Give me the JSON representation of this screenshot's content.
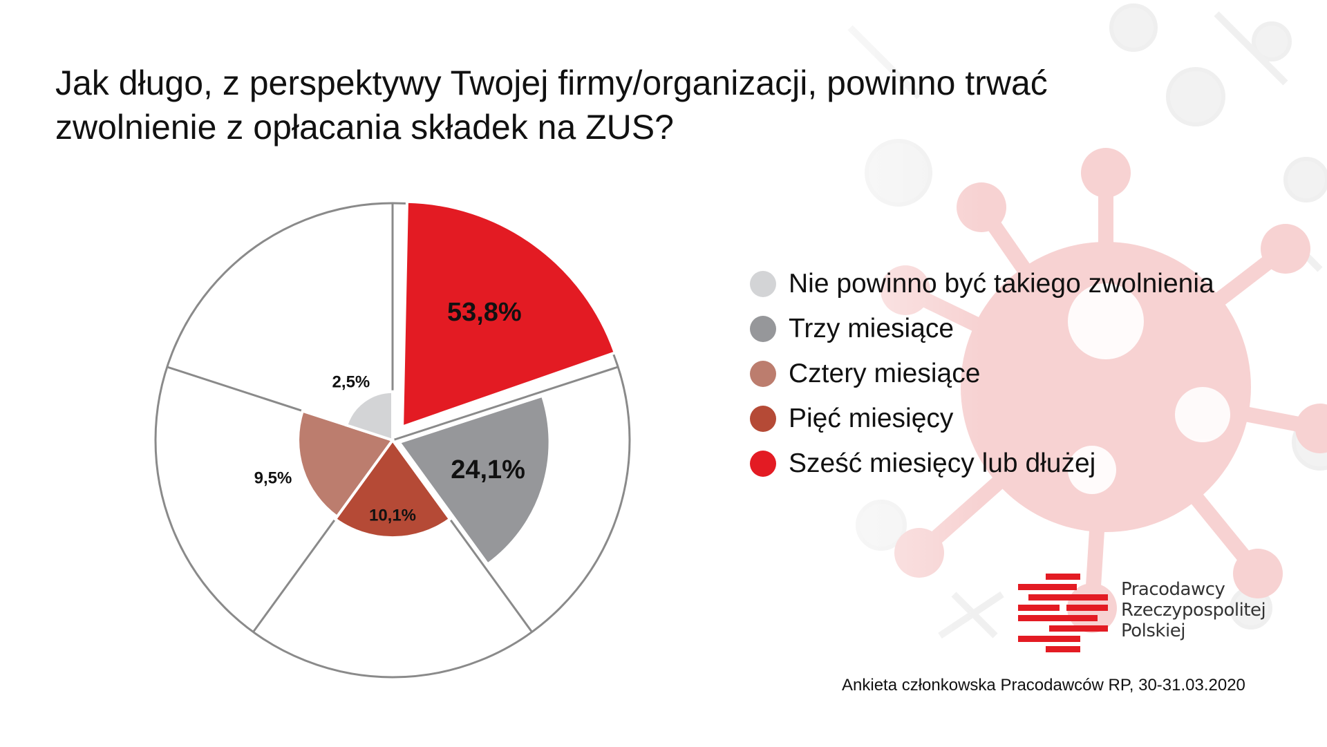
{
  "title": "Jak długo, z perspektywy Twojej firmy/organizacji, powinno trwać zwolnienie z opłacania składek na ZUS?",
  "chart_data": {
    "type": "pie",
    "variant": "exploded polar-area pie",
    "title": "Jak długo, z perspektywy Twojej firmy/organizacji, powinno trwać zwolnienie z opłacania składek na ZUS?",
    "categories": [
      "Nie powinno być takiego zwolnienia",
      "Trzy miesiące",
      "Cztery miesiące",
      "Pięć miesięcy",
      "Sześć miesięcy lub dłużej"
    ],
    "values": [
      2.5,
      24.1,
      9.5,
      10.1,
      53.8
    ],
    "data_labels": [
      "2,5%",
      "24,1%",
      "9,5%",
      "10,1%",
      "53,8%"
    ],
    "unit": "%",
    "legend_position": "right"
  },
  "legend": [
    {
      "label": "Nie powinno być takiego zwolnienia",
      "color": "#d3d4d6"
    },
    {
      "label": "Trzy miesiące",
      "color": "#96979a"
    },
    {
      "label": "Cztery miesiące",
      "color": "#bc7d6e"
    },
    {
      "label": "Pięć miesięcy",
      "color": "#b54a36"
    },
    {
      "label": "Sześć miesięcy lub dłużej",
      "color": "#e31b23"
    }
  ],
  "brand": {
    "name_lines": [
      "Pracodawcy",
      "Rzeczypospolitej",
      "Polskiej"
    ],
    "logo_icon": "pracodawcy-rp-logo-icon",
    "accent_color": "#e31b23"
  },
  "source": "Ankieta członkowska Pracodawców RP, 30-31.03.2020"
}
